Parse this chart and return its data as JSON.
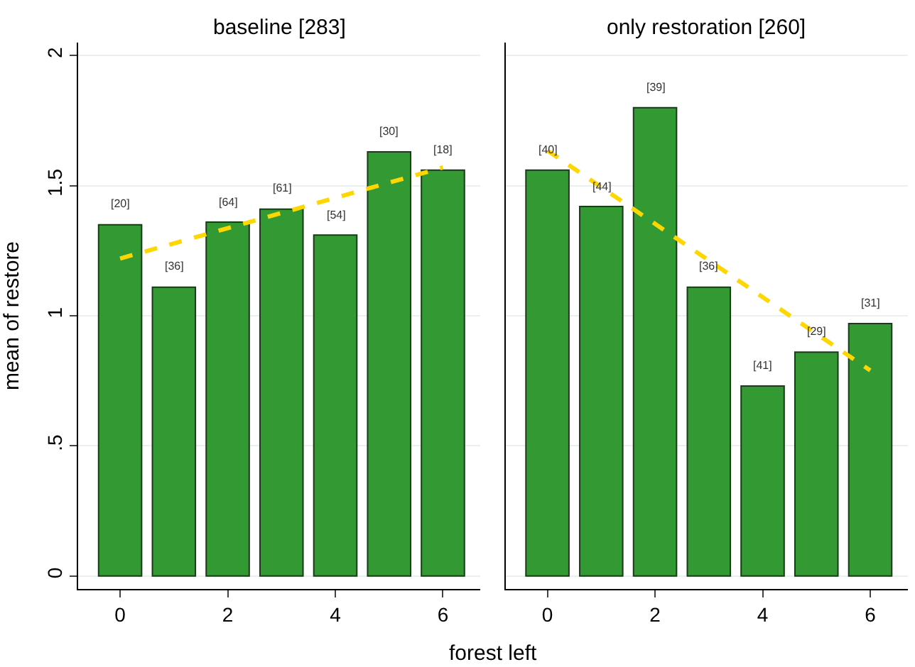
{
  "chart_data": [
    {
      "type": "bar",
      "title": "baseline [283]",
      "ylabel": "mean of restore",
      "x": [
        0,
        1,
        2,
        3,
        4,
        5,
        6
      ],
      "xlim": [
        -0.78,
        6.7
      ],
      "xticks": [
        0,
        2,
        4,
        6
      ],
      "ylim": [
        -0.05,
        2.05
      ],
      "yticks": [
        0,
        {
          "value": 0.5,
          "label": ".5"
        },
        1,
        1.5,
        2
      ],
      "grid": "y",
      "series": [
        {
          "color": "#339933",
          "values": [
            1.35,
            1.11,
            1.36,
            1.41,
            1.31,
            1.63,
            1.56
          ]
        },
        {
          "type": "line",
          "color": "#ffd700",
          "line_style": "dashed",
          "values": [
            1.22,
            null,
            null,
            null,
            null,
            null,
            1.57
          ]
        }
      ],
      "annotations": [
        {
          "text": "[20]",
          "x": 0,
          "y": 1.35
        },
        {
          "text": "[36]",
          "x": 1,
          "y": 1.11
        },
        {
          "text": "[64]",
          "x": 2,
          "y": 1.36
        },
        {
          "text": "[61]",
          "x": 3,
          "y": 1.41
        },
        {
          "text": "[54]",
          "x": 4,
          "y": 1.31
        },
        {
          "text": "[30]",
          "x": 5,
          "y": 1.63
        },
        {
          "text": "[18]",
          "x": 6,
          "y": 1.56
        }
      ]
    },
    {
      "type": "bar",
      "title": "only restoration [260]",
      "xlabel": "forest left",
      "x": [
        0,
        1,
        2,
        3,
        4,
        5,
        6
      ],
      "xlim": [
        -0.78,
        6.7
      ],
      "xticks": [
        0,
        2,
        4,
        6
      ],
      "ylim": [
        -0.05,
        2.05
      ],
      "yticks": [
        0,
        0.5,
        1,
        1.5,
        2
      ],
      "grid": "y",
      "tick_labels": "x",
      "series": [
        {
          "color": "#339933",
          "values": [
            1.56,
            1.42,
            1.8,
            1.11,
            0.73,
            0.86,
            0.97
          ]
        },
        {
          "type": "line",
          "color": "#ffd700",
          "line_style": "dashed",
          "values": [
            1.635,
            null,
            null,
            null,
            null,
            null,
            0.79
          ]
        }
      ],
      "annotations": [
        {
          "text": "[40]",
          "x": 0,
          "y": 1.56
        },
        {
          "text": "[44]",
          "x": 1,
          "y": 1.42
        },
        {
          "text": "[39]",
          "x": 2,
          "y": 1.8
        },
        {
          "text": "[36]",
          "x": 3,
          "y": 1.11
        },
        {
          "text": "[41]",
          "x": 4,
          "y": 0.73
        },
        {
          "text": "[29]",
          "x": 5,
          "y": 0.86
        },
        {
          "text": "[31]",
          "x": 6,
          "y": 0.97
        }
      ]
    }
  ]
}
